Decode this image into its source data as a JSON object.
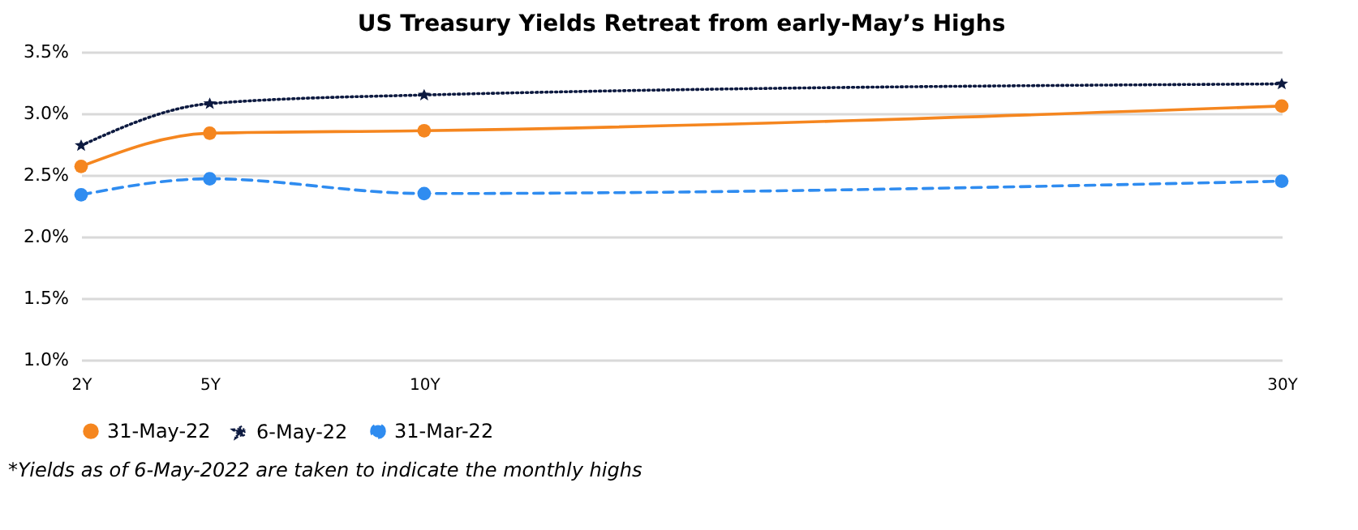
{
  "chart_data": {
    "type": "line",
    "title": "US Treasury Yields Retreat from early-May’s Highs",
    "x": [
      2,
      5,
      10,
      30
    ],
    "xlim": [
      2,
      30
    ],
    "xticks": [
      {
        "value": 2,
        "label": "2Y"
      },
      {
        "value": 5,
        "label": "5Y"
      },
      {
        "value": 10,
        "label": "10Y"
      },
      {
        "value": 30,
        "label": "30Y"
      }
    ],
    "ylim": [
      1.0,
      3.5
    ],
    "yticks": [
      {
        "value": 1.0,
        "label": "1.0%"
      },
      {
        "value": 1.5,
        "label": "1.5%"
      },
      {
        "value": 2.0,
        "label": "2.0%"
      },
      {
        "value": 2.5,
        "label": "2.5%"
      },
      {
        "value": 3.0,
        "label": "3.0%"
      },
      {
        "value": 3.5,
        "label": "3.5%"
      }
    ],
    "grid": "y",
    "legend": "bottom",
    "series": [
      {
        "name": "31-May-22",
        "color": "#f5861f",
        "line_style": "solid",
        "marker": "circle",
        "values": [
          2.57,
          2.84,
          2.86,
          3.06
        ]
      },
      {
        "name": "6-May-22",
        "color": "#0d1a40",
        "line_style": "dotted",
        "marker": "star",
        "values": [
          2.74,
          3.08,
          3.15,
          3.24
        ]
      },
      {
        "name": "31-Mar-22",
        "color": "#2f8cf0",
        "line_style": "dashed",
        "marker": "circle",
        "values": [
          2.34,
          2.47,
          2.35,
          2.45
        ]
      }
    ],
    "annotations": [
      "*Yields as of 6-May-2022 are taken to indicate the monthly highs"
    ]
  }
}
